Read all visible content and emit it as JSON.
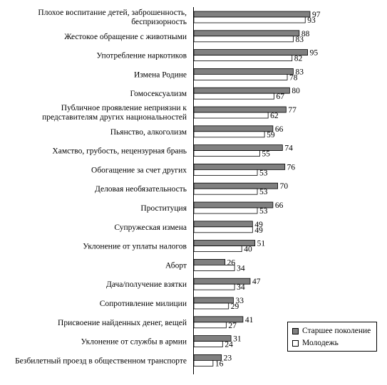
{
  "chart_data": {
    "type": "bar",
    "orientation": "horizontal",
    "categories": [
      [
        "Плохое воспитание детей, заброшенность,",
        "беспризорность"
      ],
      [
        "Жестокое обращение с животными"
      ],
      [
        "Употребление наркотиков"
      ],
      [
        "Измена Родине"
      ],
      [
        "Гомосексуализм"
      ],
      [
        "Публичное проявление неприязни к",
        "представителям других национальностей"
      ],
      [
        "Пьянство, алкоголизм"
      ],
      [
        "Хамство, грубость, нецензурная брань"
      ],
      [
        "Обогащение за счет других"
      ],
      [
        "Деловая необязательность"
      ],
      [
        "Проституция"
      ],
      [
        "Супружеская измена"
      ],
      [
        "Уклонение от уплаты налогов"
      ],
      [
        "Аборт"
      ],
      [
        "Дача/получение взятки"
      ],
      [
        "Сопротивление милиции"
      ],
      [
        "Присвоение найденных денег, вещей"
      ],
      [
        "Уклонение от службы в армии"
      ],
      [
        "Безбилетный проезд в общественном транспорте"
      ]
    ],
    "series": [
      {
        "name": "Старшее поколение",
        "color": "#808080",
        "values": [
          97,
          88,
          95,
          83,
          80,
          77,
          66,
          74,
          76,
          70,
          66,
          49,
          51,
          26,
          47,
          33,
          41,
          31,
          23
        ]
      },
      {
        "name": "Молодежь",
        "color": "#ffffff",
        "values": [
          93,
          83,
          82,
          78,
          67,
          62,
          59,
          55,
          53,
          53,
          53,
          49,
          40,
          34,
          34,
          29,
          27,
          24,
          16
        ]
      }
    ],
    "xlim": [
      0,
      100
    ],
    "legend": "bottom-right"
  }
}
